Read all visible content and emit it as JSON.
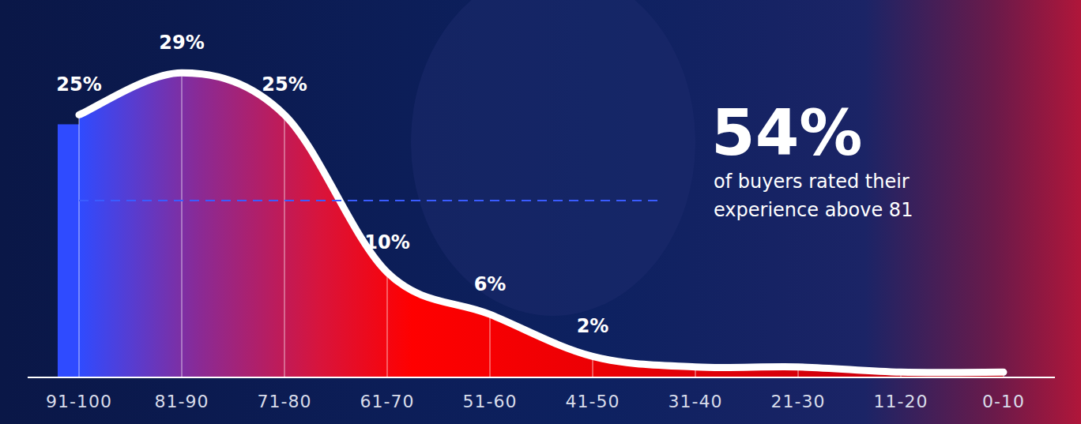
{
  "chart_data": {
    "type": "area",
    "categories": [
      "91-100",
      "81-90",
      "71-80",
      "61-70",
      "51-60",
      "41-50",
      "31-40",
      "21-30",
      "11-20",
      "0-10"
    ],
    "values": [
      25,
      29,
      25,
      10,
      6,
      2,
      1,
      1,
      0.5,
      0.5
    ],
    "value_labels": [
      "25%",
      "29%",
      "25%",
      "10%",
      "6%",
      "2%",
      null,
      null,
      null,
      null
    ],
    "data_labels": true,
    "ylim": [
      0,
      33
    ],
    "tick_labels": "x",
    "color": "#ff0000",
    "annotation": {
      "headline": "54%",
      "lines": [
        "of buyers rated their",
        "experience above 81"
      ]
    }
  }
}
